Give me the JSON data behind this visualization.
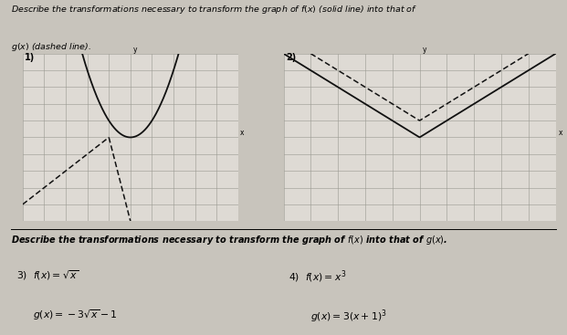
{
  "bg_color": "#c8c4bc",
  "paper_color": "#dedad4",
  "grid_color": "#999990",
  "axis_color": "#222222",
  "line_color": "#111111",
  "title_line1": "Describe the transformations necessary to transform the graph of $f(x)$ (solid line) into that of",
  "title_line2": "$g(x)$ (dashed line).",
  "bottom_title": "Describe the transformations necessary to transform the graph of $f(x)$ into that of $g(x)$.",
  "prob3_f": "3)  $f(x) = \\sqrt{x}$",
  "prob3_g": "$g(x) = -3\\sqrt{x} - 1$",
  "prob4_f": "4)  $f(x) = x^3$",
  "prob4_g": "$g(x) = 3(x+1)^3$",
  "graph1_xlim": [
    -5,
    5
  ],
  "graph1_ylim": [
    -5,
    5
  ],
  "graph2_xlim": [
    -5,
    5
  ],
  "graph2_ylim": [
    -5,
    5
  ]
}
